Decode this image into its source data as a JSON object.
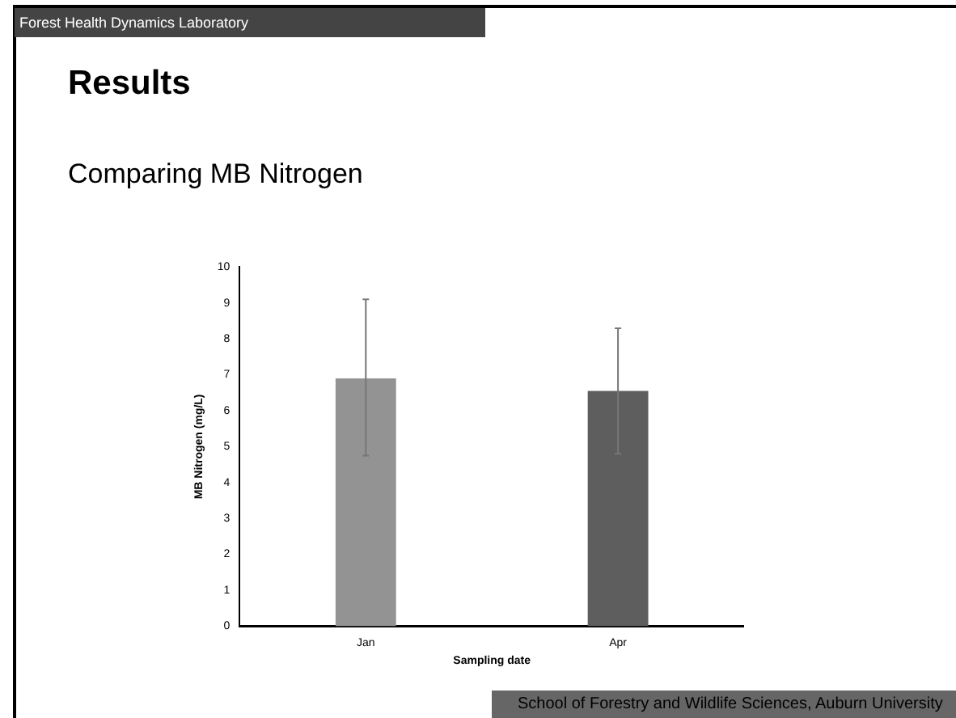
{
  "chart_data": {
    "type": "bar",
    "title": "Results",
    "subtitle": "Comparing MB Nitrogen",
    "xlabel": "Sampling date",
    "ylabel": "MB Nitrogen (mg/L)",
    "categories": [
      "Jan",
      "Apr"
    ],
    "values": [
      6.9,
      6.55
    ],
    "colors": [
      "#939393",
      "#5e5e5e"
    ],
    "errors": [
      [
        4.75,
        9.1
      ],
      [
        4.8,
        8.3
      ]
    ],
    "ylim": [
      0,
      10
    ],
    "yticks": [
      0,
      1,
      2,
      3,
      4,
      5,
      6,
      7,
      8,
      9,
      10
    ],
    "grid": false,
    "legend": false,
    "annotations": [
      "Forest Health Dynamics Laboratory",
      "School of Forestry and Wildlife Sciences, Auburn University"
    ]
  }
}
